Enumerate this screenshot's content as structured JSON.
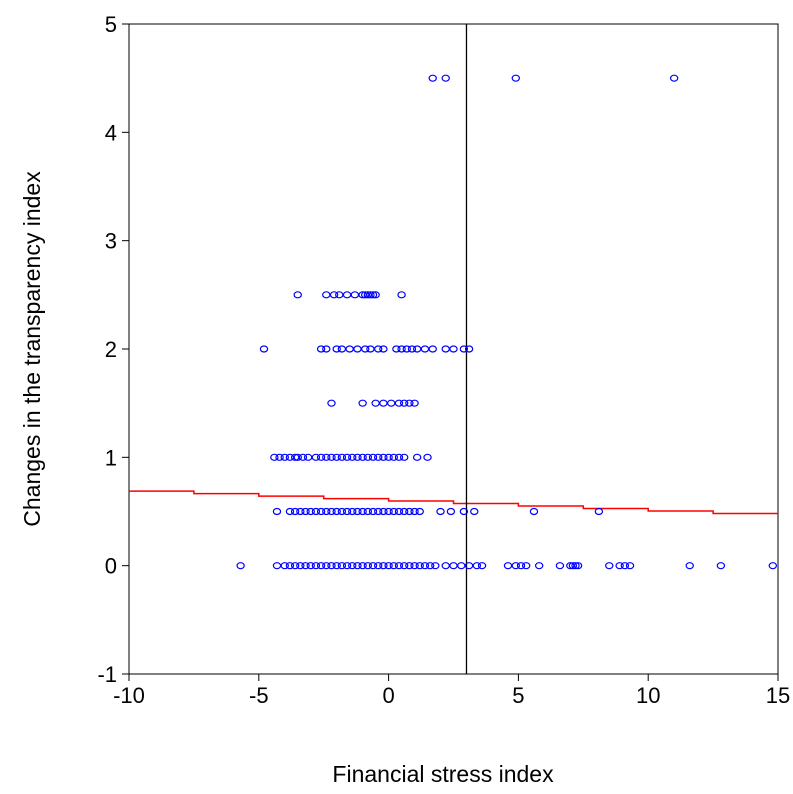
{
  "chart_data": {
    "type": "scatter",
    "title": "",
    "xlabel": "Financial stress index",
    "ylabel": "Changes in the transparency index",
    "xlim": [
      -10,
      15
    ],
    "ylim": [
      -1,
      5
    ],
    "xticks": [
      -10,
      -5,
      0,
      5,
      10,
      15
    ],
    "yticks": [
      -1,
      0,
      1,
      2,
      3,
      4,
      5
    ],
    "grid": false,
    "legend": "none",
    "colors": {
      "points": "#0000ff",
      "fit_line": "#ff0000",
      "threshold_line": "#000000",
      "axes": "#000000"
    },
    "threshold_x": 3,
    "fit_line": {
      "x": [
        -10,
        15
      ],
      "y": [
        0.7,
        0.47
      ],
      "style": "step"
    },
    "series": [
      {
        "marker": "circle-open",
        "points": [
          [
            1.7,
            4.5
          ],
          [
            2.2,
            4.5
          ],
          [
            4.9,
            4.5
          ],
          [
            11.0,
            4.5
          ],
          [
            -3.5,
            2.5
          ],
          [
            -2.4,
            2.5
          ],
          [
            -2.1,
            2.5
          ],
          [
            -1.9,
            2.5
          ],
          [
            -1.6,
            2.5
          ],
          [
            -1.3,
            2.5
          ],
          [
            -1.0,
            2.5
          ],
          [
            -0.9,
            2.5
          ],
          [
            -0.8,
            2.5
          ],
          [
            -0.7,
            2.5
          ],
          [
            -0.6,
            2.5
          ],
          [
            -0.5,
            2.5
          ],
          [
            0.5,
            2.5
          ],
          [
            -4.8,
            2.0
          ],
          [
            -2.6,
            2.0
          ],
          [
            -2.4,
            2.0
          ],
          [
            -2.0,
            2.0
          ],
          [
            -1.8,
            2.0
          ],
          [
            -1.5,
            2.0
          ],
          [
            -1.2,
            2.0
          ],
          [
            -0.9,
            2.0
          ],
          [
            -0.7,
            2.0
          ],
          [
            -0.4,
            2.0
          ],
          [
            -0.2,
            2.0
          ],
          [
            0.3,
            2.0
          ],
          [
            0.5,
            2.0
          ],
          [
            0.7,
            2.0
          ],
          [
            0.9,
            2.0
          ],
          [
            1.1,
            2.0
          ],
          [
            1.4,
            2.0
          ],
          [
            1.7,
            2.0
          ],
          [
            2.2,
            2.0
          ],
          [
            2.5,
            2.0
          ],
          [
            2.9,
            2.0
          ],
          [
            3.1,
            2.0
          ],
          [
            -2.2,
            1.5
          ],
          [
            -1.0,
            1.5
          ],
          [
            -0.5,
            1.5
          ],
          [
            -0.2,
            1.5
          ],
          [
            0.1,
            1.5
          ],
          [
            0.4,
            1.5
          ],
          [
            0.6,
            1.5
          ],
          [
            0.8,
            1.5
          ],
          [
            1.0,
            1.5
          ],
          [
            -4.4,
            1.0
          ],
          [
            -4.2,
            1.0
          ],
          [
            -4.0,
            1.0
          ],
          [
            -3.8,
            1.0
          ],
          [
            -3.6,
            1.0
          ],
          [
            -3.5,
            1.0
          ],
          [
            -3.3,
            1.0
          ],
          [
            -3.1,
            1.0
          ],
          [
            -2.8,
            1.0
          ],
          [
            -2.6,
            1.0
          ],
          [
            -2.4,
            1.0
          ],
          [
            -2.2,
            1.0
          ],
          [
            -2.0,
            1.0
          ],
          [
            -1.8,
            1.0
          ],
          [
            -1.6,
            1.0
          ],
          [
            -1.4,
            1.0
          ],
          [
            -1.2,
            1.0
          ],
          [
            -1.0,
            1.0
          ],
          [
            -0.8,
            1.0
          ],
          [
            -0.6,
            1.0
          ],
          [
            -0.4,
            1.0
          ],
          [
            -0.2,
            1.0
          ],
          [
            0.0,
            1.0
          ],
          [
            0.2,
            1.0
          ],
          [
            0.4,
            1.0
          ],
          [
            0.6,
            1.0
          ],
          [
            1.1,
            1.0
          ],
          [
            1.5,
            1.0
          ],
          [
            -4.3,
            0.5
          ],
          [
            -3.8,
            0.5
          ],
          [
            -3.6,
            0.5
          ],
          [
            -3.4,
            0.5
          ],
          [
            -3.2,
            0.5
          ],
          [
            -3.0,
            0.5
          ],
          [
            -2.8,
            0.5
          ],
          [
            -2.6,
            0.5
          ],
          [
            -2.4,
            0.5
          ],
          [
            -2.2,
            0.5
          ],
          [
            -2.0,
            0.5
          ],
          [
            -1.8,
            0.5
          ],
          [
            -1.6,
            0.5
          ],
          [
            -1.4,
            0.5
          ],
          [
            -1.2,
            0.5
          ],
          [
            -1.0,
            0.5
          ],
          [
            -0.8,
            0.5
          ],
          [
            -0.6,
            0.5
          ],
          [
            -0.4,
            0.5
          ],
          [
            -0.2,
            0.5
          ],
          [
            0.0,
            0.5
          ],
          [
            0.2,
            0.5
          ],
          [
            0.4,
            0.5
          ],
          [
            0.6,
            0.5
          ],
          [
            0.8,
            0.5
          ],
          [
            1.0,
            0.5
          ],
          [
            1.2,
            0.5
          ],
          [
            2.0,
            0.5
          ],
          [
            2.4,
            0.5
          ],
          [
            2.9,
            0.5
          ],
          [
            3.3,
            0.5
          ],
          [
            5.6,
            0.5
          ],
          [
            8.1,
            0.5
          ],
          [
            -5.7,
            0.0
          ],
          [
            -4.3,
            0.0
          ],
          [
            -4.0,
            0.0
          ],
          [
            -3.8,
            0.0
          ],
          [
            -3.6,
            0.0
          ],
          [
            -3.4,
            0.0
          ],
          [
            -3.2,
            0.0
          ],
          [
            -3.0,
            0.0
          ],
          [
            -2.8,
            0.0
          ],
          [
            -2.6,
            0.0
          ],
          [
            -2.4,
            0.0
          ],
          [
            -2.2,
            0.0
          ],
          [
            -2.0,
            0.0
          ],
          [
            -1.8,
            0.0
          ],
          [
            -1.6,
            0.0
          ],
          [
            -1.4,
            0.0
          ],
          [
            -1.2,
            0.0
          ],
          [
            -1.0,
            0.0
          ],
          [
            -0.8,
            0.0
          ],
          [
            -0.6,
            0.0
          ],
          [
            -0.4,
            0.0
          ],
          [
            -0.2,
            0.0
          ],
          [
            0.0,
            0.0
          ],
          [
            0.2,
            0.0
          ],
          [
            0.4,
            0.0
          ],
          [
            0.6,
            0.0
          ],
          [
            0.8,
            0.0
          ],
          [
            1.0,
            0.0
          ],
          [
            1.2,
            0.0
          ],
          [
            1.4,
            0.0
          ],
          [
            1.6,
            0.0
          ],
          [
            1.8,
            0.0
          ],
          [
            2.2,
            0.0
          ],
          [
            2.5,
            0.0
          ],
          [
            2.8,
            0.0
          ],
          [
            3.1,
            0.0
          ],
          [
            3.4,
            0.0
          ],
          [
            3.6,
            0.0
          ],
          [
            4.6,
            0.0
          ],
          [
            4.9,
            0.0
          ],
          [
            5.1,
            0.0
          ],
          [
            5.3,
            0.0
          ],
          [
            5.8,
            0.0
          ],
          [
            6.6,
            0.0
          ],
          [
            7.0,
            0.0
          ],
          [
            7.1,
            0.0
          ],
          [
            7.2,
            0.0
          ],
          [
            7.3,
            0.0
          ],
          [
            8.5,
            0.0
          ],
          [
            8.9,
            0.0
          ],
          [
            9.1,
            0.0
          ],
          [
            9.3,
            0.0
          ],
          [
            11.6,
            0.0
          ],
          [
            12.8,
            0.0
          ],
          [
            14.8,
            0.0
          ]
        ]
      }
    ]
  }
}
